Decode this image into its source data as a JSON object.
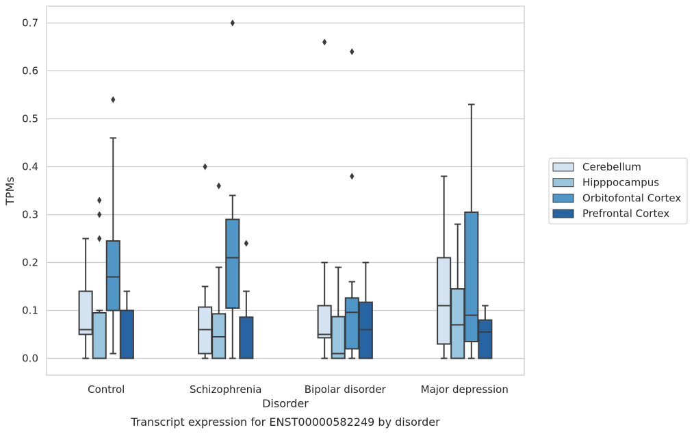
{
  "chart_data": {
    "type": "box",
    "title": "",
    "caption": "Transcript expression for ENST00000582249 by disorder",
    "xlabel": "Disorder",
    "ylabel": "TPMs",
    "ylim": [
      -0.035,
      0.735
    ],
    "yticks": [
      0.0,
      0.1,
      0.2,
      0.3,
      0.4,
      0.5,
      0.6,
      0.7
    ],
    "ytick_labels": [
      "0.0",
      "0.1",
      "0.2",
      "0.3",
      "0.4",
      "0.5",
      "0.6",
      "0.7"
    ],
    "grid": "horizontal",
    "legend_position": "right",
    "categories": [
      "Control",
      "Schizophrenia",
      "Bipolar disorder",
      "Major depression"
    ],
    "series": [
      {
        "name": "Cerebellum",
        "color": "#d3e3f1",
        "boxes": [
          {
            "whislo": 0.0,
            "q1": 0.05,
            "med": 0.06,
            "q3": 0.14,
            "whishi": 0.25,
            "fliers": []
          },
          {
            "whislo": 0.0,
            "q1": 0.01,
            "med": 0.06,
            "q3": 0.107,
            "whishi": 0.15,
            "fliers": [
              0.4
            ]
          },
          {
            "whislo": 0.0,
            "q1": 0.043,
            "med": 0.05,
            "q3": 0.11,
            "whishi": 0.2,
            "fliers": [
              0.66
            ]
          },
          {
            "whislo": 0.0,
            "q1": 0.03,
            "med": 0.11,
            "q3": 0.21,
            "whishi": 0.38,
            "fliers": []
          }
        ]
      },
      {
        "name": "Hipppocampus",
        "color": "#9ac5de",
        "boxes": [
          {
            "whislo": 0.0,
            "q1": 0.0,
            "med": 0.0,
            "q3": 0.095,
            "whishi": 0.1,
            "fliers": [
              0.25,
              0.3,
              0.33
            ]
          },
          {
            "whislo": 0.0,
            "q1": 0.0,
            "med": 0.045,
            "q3": 0.093,
            "whishi": 0.19,
            "fliers": [
              0.36
            ]
          },
          {
            "whislo": 0.0,
            "q1": 0.0,
            "med": 0.01,
            "q3": 0.087,
            "whishi": 0.19,
            "fliers": []
          },
          {
            "whislo": 0.0,
            "q1": 0.0,
            "med": 0.07,
            "q3": 0.145,
            "whishi": 0.28,
            "fliers": []
          }
        ]
      },
      {
        "name": "Orbitofontal Cortex",
        "color": "#5097c7",
        "boxes": [
          {
            "whislo": 0.01,
            "q1": 0.1,
            "med": 0.17,
            "q3": 0.245,
            "whishi": 0.46,
            "fliers": [
              0.54
            ]
          },
          {
            "whislo": 0.0,
            "q1": 0.105,
            "med": 0.21,
            "q3": 0.29,
            "whishi": 0.34,
            "fliers": [
              0.7
            ]
          },
          {
            "whislo": 0.0,
            "q1": 0.02,
            "med": 0.096,
            "q3": 0.126,
            "whishi": 0.16,
            "fliers": [
              0.38,
              0.64
            ]
          },
          {
            "whislo": 0.0,
            "q1": 0.035,
            "med": 0.09,
            "q3": 0.305,
            "whishi": 0.53,
            "fliers": []
          }
        ]
      },
      {
        "name": "Prefrontal Cortex",
        "color": "#2764a3",
        "boxes": [
          {
            "whislo": 0.0,
            "q1": 0.0,
            "med": 0.0,
            "q3": 0.1,
            "whishi": 0.14,
            "fliers": []
          },
          {
            "whislo": 0.0,
            "q1": 0.0,
            "med": 0.0,
            "q3": 0.086,
            "whishi": 0.14,
            "fliers": [
              0.24
            ]
          },
          {
            "whislo": 0.0,
            "q1": 0.0,
            "med": 0.06,
            "q3": 0.117,
            "whishi": 0.2,
            "fliers": []
          },
          {
            "whislo": 0.0,
            "q1": 0.0,
            "med": 0.055,
            "q3": 0.08,
            "whishi": 0.11,
            "fliers": []
          }
        ]
      }
    ],
    "colors": {
      "frame": "#cccccc",
      "grid": "#cccccc",
      "line": "#3c3c3c"
    }
  }
}
